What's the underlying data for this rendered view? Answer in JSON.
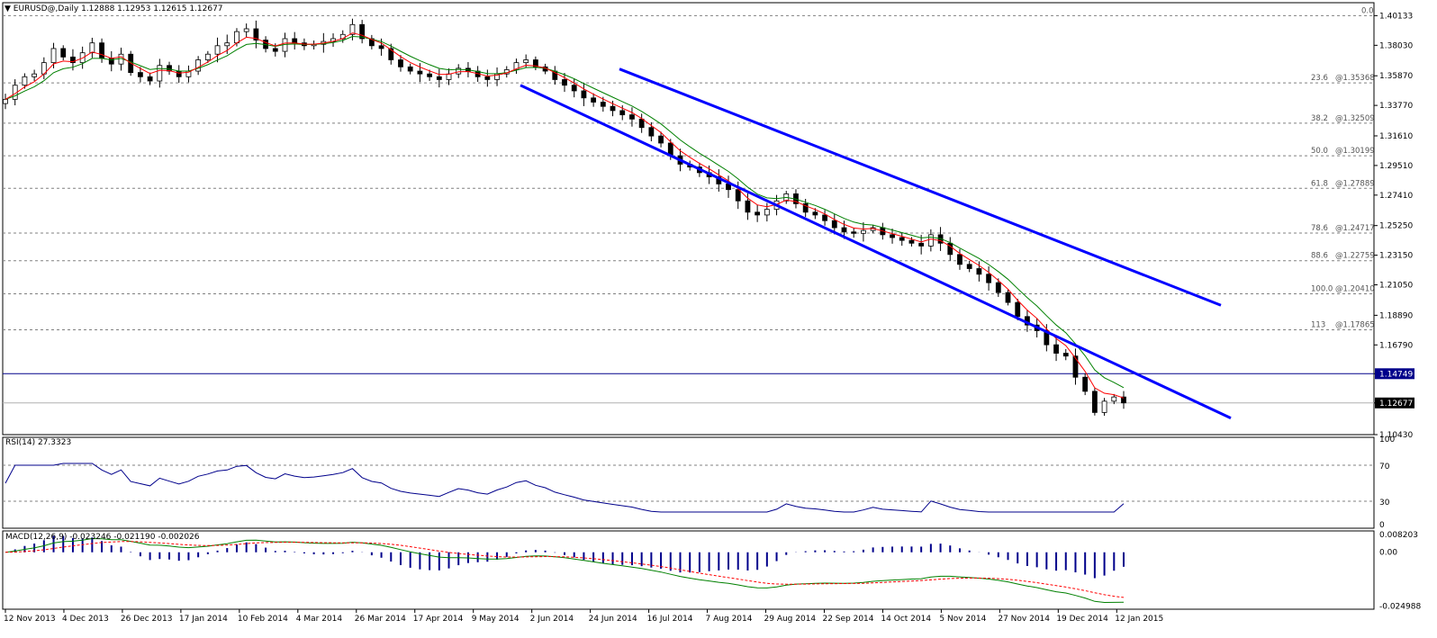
{
  "header": {
    "symbol_label": "EURUSD@,Daily",
    "ohlc": "1.12888 1.12953 1.12615 1.12677"
  },
  "price_axis_labels": [
    "1.40133",
    "1.38030",
    "1.35870",
    "1.33770",
    "1.31610",
    "1.29510",
    "1.27410",
    "1.25250",
    "1.23150",
    "1.21050",
    "1.18890",
    "1.16790",
    "1.14749",
    "1.12677",
    "1.10430"
  ],
  "price_tags": {
    "resistance": "1.14749",
    "current": "1.12677"
  },
  "fib_labels": [
    {
      "pct": "0.0",
      "price": ""
    },
    {
      "pct": "23.6",
      "price": "@1.35368"
    },
    {
      "pct": "38.2",
      "price": "@1.32509"
    },
    {
      "pct": "50.0",
      "price": "@1.30199"
    },
    {
      "pct": "61.8",
      "price": "@1.27889"
    },
    {
      "pct": "78.6",
      "price": "@1.24717"
    },
    {
      "pct": "88.6",
      "price": "@1.22759"
    },
    {
      "pct": "100.0",
      "price": "@1.20410"
    },
    {
      "pct": "113",
      "price": "@1.17865"
    }
  ],
  "rsi": {
    "label": "RSI(14) 27.3323",
    "axis_labels": [
      "100",
      "70",
      "30",
      "0"
    ]
  },
  "macd": {
    "label": "MACD(12,26,9) -0.023246 -0.021190 -0.002026",
    "axis_labels": [
      "0.008203",
      "0.00",
      "-0.024988"
    ]
  },
  "date_labels": [
    "12 Nov 2013",
    "4 Dec 2013",
    "26 Dec 2013",
    "17 Jan 2014",
    "10 Feb 2014",
    "4 Mar 2014",
    "26 Mar 2014",
    "17 Apr 2014",
    "9 May 2014",
    "2 Jun 2014",
    "24 Jun 2014",
    "16 Jul 2014",
    "7 Aug 2014",
    "29 Aug 2014",
    "22 Sep 2014",
    "14 Oct 2014",
    "5 Nov 2014",
    "27 Nov 2014",
    "19 Dec 2014",
    "12 Jan 2015"
  ],
  "colors": {
    "candles": "#000000",
    "ema_fast": "#ff0000",
    "ema_slow": "#008000",
    "channel": "#0000ff",
    "horizontal_line": "#00008b",
    "rsi_line": "#00008b",
    "macd_hist": "#00008b",
    "macd_line": "#008000",
    "signal_line": "#ff0000",
    "grid_dashed": "#808080"
  },
  "chart_data": {
    "type": "line",
    "symbol": "EURUSD",
    "timeframe": "Daily",
    "x_labels": [
      "12 Nov 2013",
      "4 Dec 2013",
      "26 Dec 2013",
      "17 Jan 2014",
      "10 Feb 2014",
      "4 Mar 2014",
      "26 Mar 2014",
      "17 Apr 2014",
      "9 May 2014",
      "2 Jun 2014",
      "24 Jun 2014",
      "16 Jul 2014",
      "7 Aug 2014",
      "29 Aug 2014",
      "22 Sep 2014",
      "14 Oct 2014",
      "5 Nov 2014",
      "27 Nov 2014",
      "19 Dec 2014",
      "12 Jan 2015"
    ],
    "ylim": [
      1.1043,
      1.4105
    ],
    "close_approx": [
      1.342,
      1.352,
      1.358,
      1.36,
      1.368,
      1.378,
      1.372,
      1.368,
      1.375,
      1.382,
      1.371,
      1.367,
      1.374,
      1.361,
      1.358,
      1.355,
      1.366,
      1.362,
      1.358,
      1.362,
      1.37,
      1.374,
      1.38,
      1.382,
      1.39,
      1.392,
      1.384,
      1.378,
      1.376,
      1.385,
      1.382,
      1.38,
      1.381,
      1.383,
      1.385,
      1.388,
      1.395,
      1.385,
      1.38,
      1.378,
      1.37,
      1.365,
      1.362,
      1.36,
      1.358,
      1.356,
      1.36,
      1.364,
      1.362,
      1.358,
      1.356,
      1.36,
      1.363,
      1.368,
      1.37,
      1.365,
      1.362,
      1.356,
      1.352,
      1.348,
      1.343,
      1.34,
      1.337,
      1.334,
      1.331,
      1.328,
      1.322,
      1.316,
      1.311,
      1.302,
      1.296,
      1.294,
      1.29,
      1.287,
      1.282,
      1.278,
      1.27,
      1.262,
      1.26,
      1.264,
      1.27,
      1.275,
      1.268,
      1.262,
      1.26,
      1.256,
      1.251,
      1.248,
      1.247,
      1.249,
      1.251,
      1.246,
      1.244,
      1.242,
      1.24,
      1.238,
      1.246,
      1.24,
      1.232,
      1.225,
      1.222,
      1.218,
      1.212,
      1.205,
      1.198,
      1.188,
      1.182,
      1.178,
      1.168,
      1.162,
      1.16,
      1.145,
      1.135,
      1.12,
      1.128,
      1.131,
      1.1268
    ],
    "fibonacci_levels": [
      {
        "level": 0.0,
        "price": 1.40133
      },
      {
        "level": 23.6,
        "price": 1.35368
      },
      {
        "level": 38.2,
        "price": 1.32509
      },
      {
        "level": 50.0,
        "price": 1.30199
      },
      {
        "level": 61.8,
        "price": 1.27889
      },
      {
        "level": 78.6,
        "price": 1.24717
      },
      {
        "level": 88.6,
        "price": 1.22759
      },
      {
        "level": 100.0,
        "price": 1.2041
      },
      {
        "level": 113,
        "price": 1.17865
      }
    ],
    "horizontal_line": 1.14749,
    "current_price": 1.12677,
    "channel": {
      "upper": [
        {
          "date": "24 Jun 2014",
          "price": 1.3635
        },
        {
          "date": "16 Jan 2015 (approx)",
          "price": 1.196
        }
      ],
      "lower": [
        {
          "date": "2 Jun 2014",
          "price": 1.352
        },
        {
          "date": "20 Jan 2015 (approx)",
          "price": 1.116
        }
      ]
    },
    "rsi": {
      "period": 14,
      "last": 27.3323,
      "ylim": [
        0,
        100
      ],
      "levels": [
        70,
        30
      ]
    },
    "macd": {
      "fast": 12,
      "slow": 26,
      "signal": 9,
      "main": -0.023246,
      "signal_value": -0.02119,
      "hist": -0.002026,
      "ylim": [
        -0.026,
        0.0095
      ]
    },
    "grid": false
  }
}
